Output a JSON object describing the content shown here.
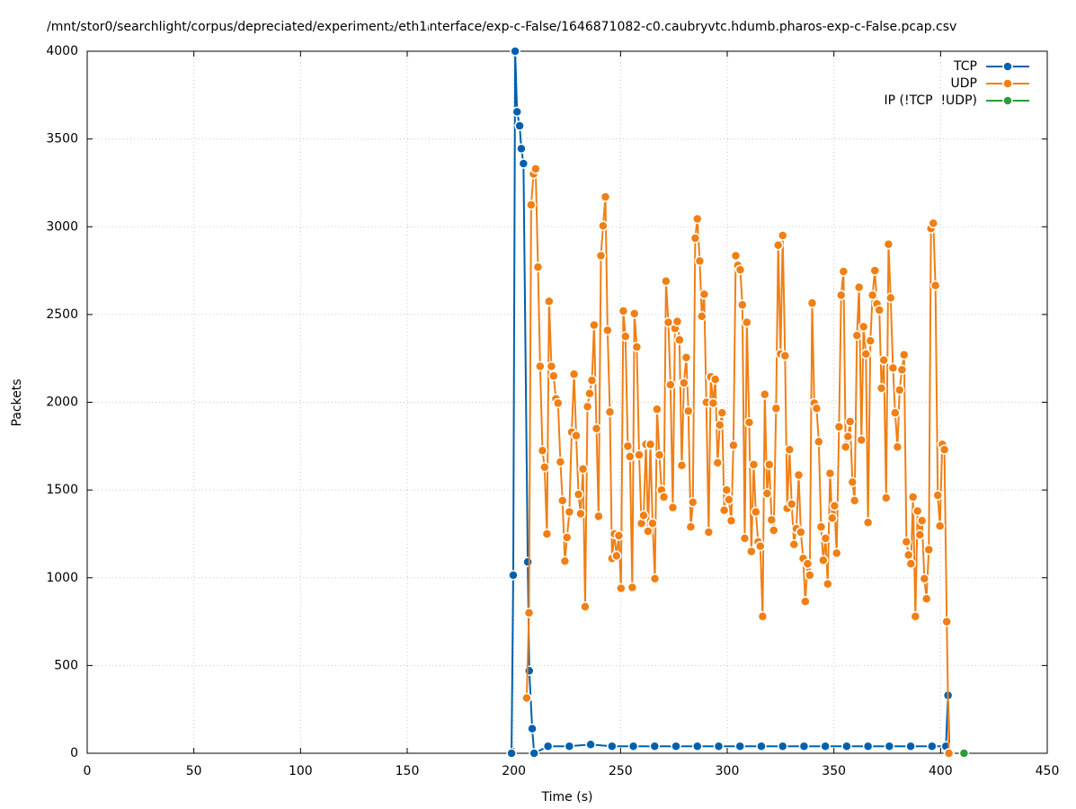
{
  "chart_data": {
    "type": "line",
    "title": "/mnt/stor0/searchlight/corpus/depreciated/experiment₂/eth1ᵢnterface/exp-c-False/1646871082-c0.caubryvtc.hdumb.pharos-exp-c-False.pcap.csv",
    "x_label": "Time (s)",
    "y_label": "Packets",
    "xlim": [
      0,
      450
    ],
    "xticks": [
      0,
      50,
      100,
      150,
      200,
      250,
      300,
      350,
      400,
      450
    ],
    "ylim": [
      0,
      4000
    ],
    "yticks": [
      0,
      500,
      1000,
      1500,
      2000,
      2500,
      3000,
      3500,
      4000
    ],
    "grid": true,
    "legend": "top-right",
    "series": [
      {
        "name": "TCP",
        "color": "#0060ad",
        "x": [
          198.9,
          199.7,
          200.6,
          201.5,
          202.7,
          203.5,
          204.5,
          206.5,
          207.2,
          208.6,
          209.5,
          216,
          226,
          236,
          246,
          256,
          266,
          276,
          286,
          296,
          306,
          316,
          326,
          336,
          346,
          356,
          366,
          376,
          386,
          396,
          402.5,
          403.5,
          404.2
        ],
        "values": [
          0,
          1015,
          4000,
          3655,
          3575,
          3445,
          3360,
          1090,
          470,
          140,
          0,
          40,
          40,
          50,
          40,
          40,
          40,
          40,
          40,
          40,
          40,
          40,
          40,
          40,
          40,
          40,
          40,
          40,
          40,
          40,
          40,
          330,
          0
        ]
      },
      {
        "name": "UDP",
        "color": "#f07f14",
        "x": [
          206.0,
          207.1,
          208.1,
          209.2,
          210.2,
          211.3,
          212.3,
          213.4,
          214.4,
          215.5,
          216.5,
          217.6,
          218.6,
          219.7,
          220.7,
          221.8,
          222.8,
          223.9,
          224.9,
          226.0,
          227.1,
          228.2,
          229.2,
          230.3,
          231.3,
          232.4,
          233.4,
          234.5,
          235.5,
          236.6,
          237.6,
          238.7,
          239.7,
          240.8,
          241.8,
          242.9,
          243.9,
          245.0,
          246.0,
          247.1,
          248.1,
          249.2,
          250.2,
          251.3,
          252.3,
          253.4,
          254.4,
          255.5,
          256.5,
          257.6,
          258.7,
          259.8,
          260.8,
          261.9,
          262.9,
          264.0,
          265.0,
          266.1,
          267.1,
          268.2,
          269.2,
          270.3,
          271.3,
          272.4,
          273.4,
          274.5,
          275.5,
          276.6,
          277.6,
          278.7,
          279.7,
          280.8,
          281.8,
          282.9,
          283.9,
          285.0,
          286.0,
          287.1,
          288.1,
          289.2,
          290.2,
          291.3,
          292.3,
          293.4,
          294.4,
          295.5,
          296.5,
          297.6,
          298.6,
          299.7,
          300.8,
          301.9,
          302.9,
          304.0,
          305.0,
          306.1,
          307.1,
          308.2,
          309.2,
          310.3,
          311.3,
          312.4,
          313.4,
          314.5,
          315.5,
          316.6,
          317.6,
          318.7,
          319.7,
          320.8,
          321.8,
          322.9,
          323.9,
          325.0,
          326.0,
          327.1,
          328.1,
          329.2,
          330.2,
          331.3,
          332.4,
          333.5,
          334.5,
          335.6,
          336.6,
          337.7,
          338.7,
          339.8,
          340.8,
          341.9,
          342.9,
          344.0,
          345.0,
          346.1,
          347.1,
          348.2,
          349.2,
          350.3,
          351.3,
          352.4,
          353.4,
          354.5,
          355.5,
          356.6,
          357.6,
          358.7,
          359.7,
          360.8,
          361.8,
          362.9,
          363.9,
          365.0,
          366.0,
          367.1,
          368.1,
          369.2,
          370.2,
          371.3,
          372.3,
          373.4,
          374.5,
          375.6,
          376.6,
          377.7,
          378.7,
          379.8,
          380.8,
          381.9,
          382.9,
          384.0,
          385.0,
          386.1,
          387.1,
          388.2,
          389.2,
          390.3,
          391.3,
          392.4,
          393.4,
          394.5,
          395.5,
          396.6,
          397.6,
          398.7,
          399.7,
          400.8,
          401.8,
          402.9,
          403.9
        ],
        "values": [
          315,
          800,
          3125,
          3300,
          3330,
          2770,
          2205,
          1725,
          1630,
          1250,
          2575,
          2205,
          2150,
          2020,
          1995,
          1660,
          1440,
          1095,
          1230,
          1375,
          1830,
          2160,
          1810,
          1475,
          1365,
          1620,
          835,
          1975,
          2050,
          2125,
          2440,
          1850,
          1350,
          2835,
          3005,
          3170,
          2410,
          1945,
          1110,
          1250,
          1125,
          1240,
          940,
          2520,
          2375,
          1750,
          1690,
          945,
          2505,
          2315,
          1700,
          1310,
          1355,
          1760,
          1265,
          1760,
          1310,
          995,
          1960,
          1700,
          1500,
          1460,
          2690,
          2455,
          2100,
          1400,
          2420,
          2460,
          2355,
          1640,
          2110,
          2255,
          1950,
          1290,
          1430,
          2935,
          3045,
          2805,
          2490,
          2615,
          2000,
          1260,
          2145,
          1995,
          2130,
          1655,
          1870,
          1940,
          1385,
          1500,
          1445,
          1325,
          1755,
          2835,
          2780,
          2755,
          2555,
          1225,
          2455,
          1885,
          1150,
          1645,
          1375,
          1205,
          1180,
          780,
          2045,
          1480,
          1645,
          1330,
          1270,
          1965,
          2895,
          2275,
          2950,
          2265,
          1395,
          1730,
          1420,
          1190,
          1280,
          1585,
          1260,
          1110,
          865,
          1080,
          1015,
          2565,
          1995,
          1965,
          1775,
          1290,
          1100,
          1225,
          965,
          1595,
          1340,
          1410,
          1140,
          1860,
          2610,
          2745,
          1745,
          1805,
          1890,
          1545,
          1440,
          2380,
          2655,
          1785,
          2430,
          2275,
          1315,
          2350,
          2610,
          2750,
          2560,
          2525,
          2080,
          2240,
          1455,
          2900,
          2595,
          2195,
          1940,
          1745,
          2070,
          2185,
          2270,
          1205,
          1130,
          1080,
          1460,
          780,
          1380,
          1245,
          1325,
          995,
          880,
          1160,
          2990,
          3020,
          2665,
          1470,
          1295,
          1760,
          1730,
          750,
          0
        ]
      },
      {
        "name": "IP (!TCP  !UDP)",
        "color": "#2a9d3a",
        "x": [
          411
        ],
        "values": [
          0
        ]
      }
    ]
  }
}
